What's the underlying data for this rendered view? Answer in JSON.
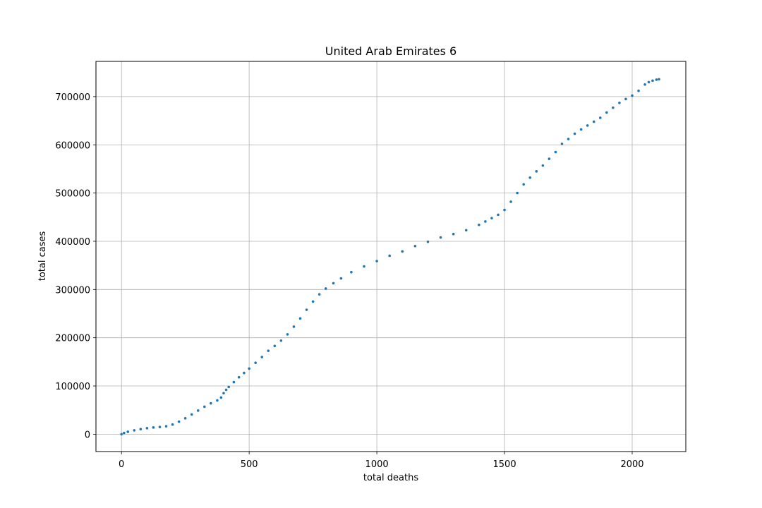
{
  "chart_data": {
    "type": "scatter",
    "title": "United Arab Emirates 6",
    "xlabel": "total deaths",
    "ylabel": "total cases",
    "xlim": [
      -100,
      2210
    ],
    "ylim": [
      -36000,
      773000
    ],
    "xticks": [
      0,
      500,
      1000,
      1500,
      2000
    ],
    "xtick_labels": [
      "0",
      "500",
      "1000",
      "1500",
      "2000"
    ],
    "yticks": [
      0,
      100000,
      200000,
      300000,
      400000,
      500000,
      600000,
      700000
    ],
    "ytick_labels": [
      "0",
      "100000",
      "200000",
      "300000",
      "400000",
      "500000",
      "600000",
      "700000"
    ],
    "grid": true,
    "marker_color": "#1f77b4",
    "series": [
      {
        "x": [
          0,
          10,
          25,
          50,
          75,
          100,
          125,
          150,
          175,
          200,
          225,
          250,
          275,
          300,
          325,
          350,
          375,
          390,
          400,
          410,
          420,
          440,
          460,
          480,
          500,
          525,
          550,
          575,
          600,
          625,
          650,
          675,
          700,
          725,
          750,
          775,
          800,
          830,
          860,
          900,
          950,
          1000,
          1050,
          1100,
          1150,
          1200,
          1250,
          1300,
          1350,
          1400,
          1425,
          1450,
          1475,
          1500,
          1525,
          1550,
          1575,
          1600,
          1625,
          1650,
          1675,
          1700,
          1725,
          1750,
          1775,
          1800,
          1825,
          1850,
          1875,
          1900,
          1925,
          1950,
          1975,
          2000,
          2025,
          2050,
          2065,
          2080,
          2095,
          2105
        ],
        "y": [
          0,
          2500,
          5000,
          8000,
          10500,
          12500,
          14000,
          15000,
          16500,
          20000,
          26000,
          33000,
          41000,
          49000,
          57000,
          64000,
          70000,
          76000,
          85000,
          92000,
          98000,
          108000,
          118000,
          127000,
          136000,
          148000,
          160000,
          173000,
          183000,
          194000,
          207000,
          223000,
          240000,
          258000,
          275000,
          290000,
          302000,
          313000,
          323000,
          336000,
          348000,
          359000,
          370000,
          379000,
          390000,
          399000,
          408000,
          415000,
          423000,
          434000,
          441000,
          448000,
          455000,
          465000,
          482000,
          500000,
          518000,
          532000,
          545000,
          557000,
          571000,
          585000,
          602000,
          612000,
          623000,
          632000,
          640000,
          648000,
          656000,
          667000,
          677000,
          687000,
          695000,
          702000,
          712000,
          725000,
          730000,
          733000,
          735000,
          736000
        ]
      }
    ]
  }
}
